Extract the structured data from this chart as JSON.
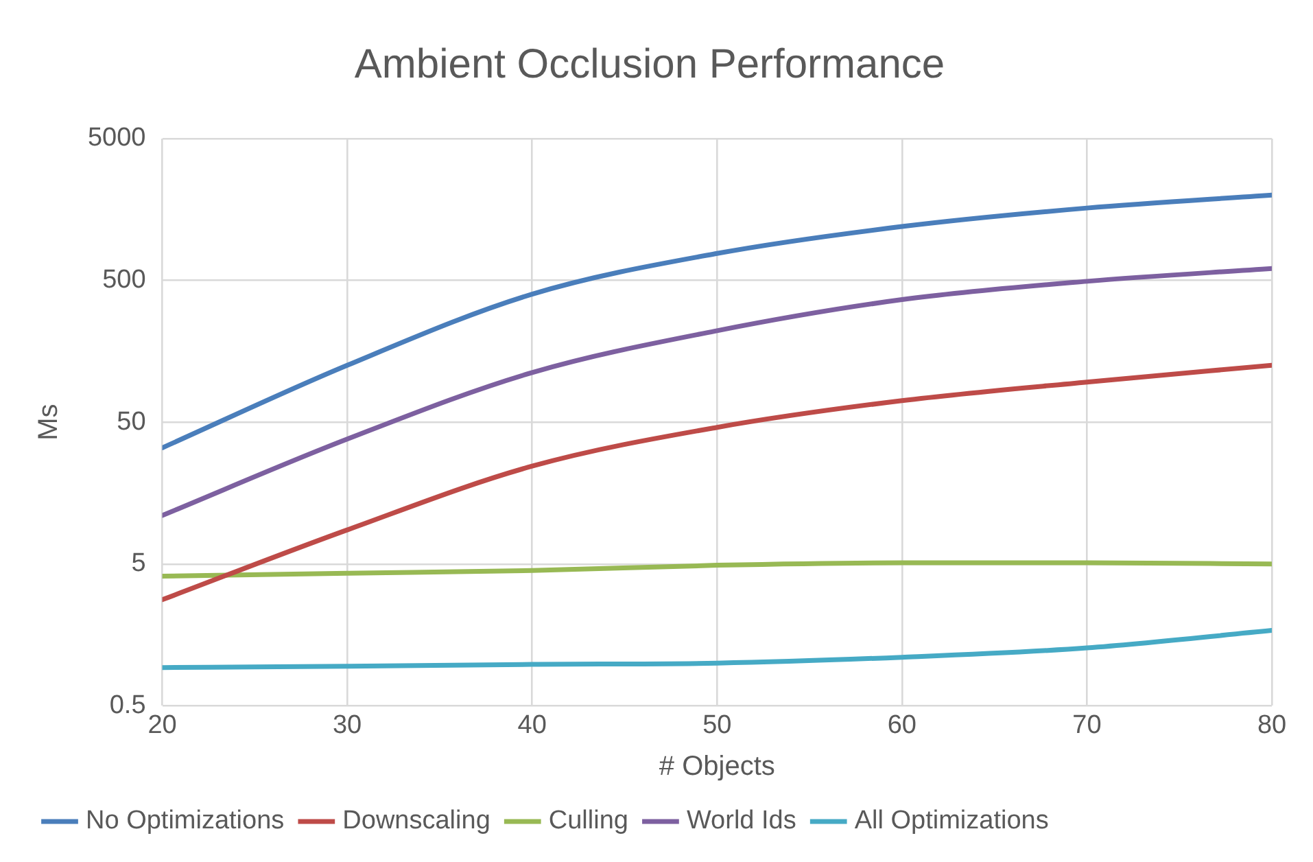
{
  "chart_data": {
    "type": "line",
    "title": "Ambient Occlusion Performance",
    "xlabel": "# Objects",
    "ylabel": "Ms",
    "x": [
      20,
      30,
      40,
      50,
      60,
      70,
      80
    ],
    "xlim": [
      20,
      80
    ],
    "xticks": [
      20,
      30,
      40,
      50,
      60,
      70,
      80
    ],
    "ylim": [
      0.5,
      5000
    ],
    "yticks": [
      0.5,
      5,
      50,
      500,
      5000
    ],
    "log": "y",
    "grid": true,
    "legend": "bottom",
    "marker": "none",
    "series": [
      {
        "name": "No Optimizations",
        "color": "#4a7ebb",
        "values": [
          33,
          126,
          400,
          775,
          1200,
          1620,
          2000
        ]
      },
      {
        "name": "Downscaling",
        "color": "#be4b48",
        "values": [
          2.8,
          8.7,
          24.5,
          46,
          71,
          96,
          126
        ]
      },
      {
        "name": "Culling",
        "color": "#98b954",
        "values": [
          4.1,
          4.3,
          4.5,
          4.9,
          5.1,
          5.1,
          5.0
        ]
      },
      {
        "name": "World Ids",
        "color": "#7d60a0",
        "values": [
          11,
          38,
          112,
          221,
          366,
          493,
          607
        ]
      },
      {
        "name": "All Optimizations",
        "color": "#46aac5",
        "values": [
          0.93,
          0.95,
          0.98,
          1.0,
          1.1,
          1.28,
          1.7
        ]
      }
    ]
  }
}
